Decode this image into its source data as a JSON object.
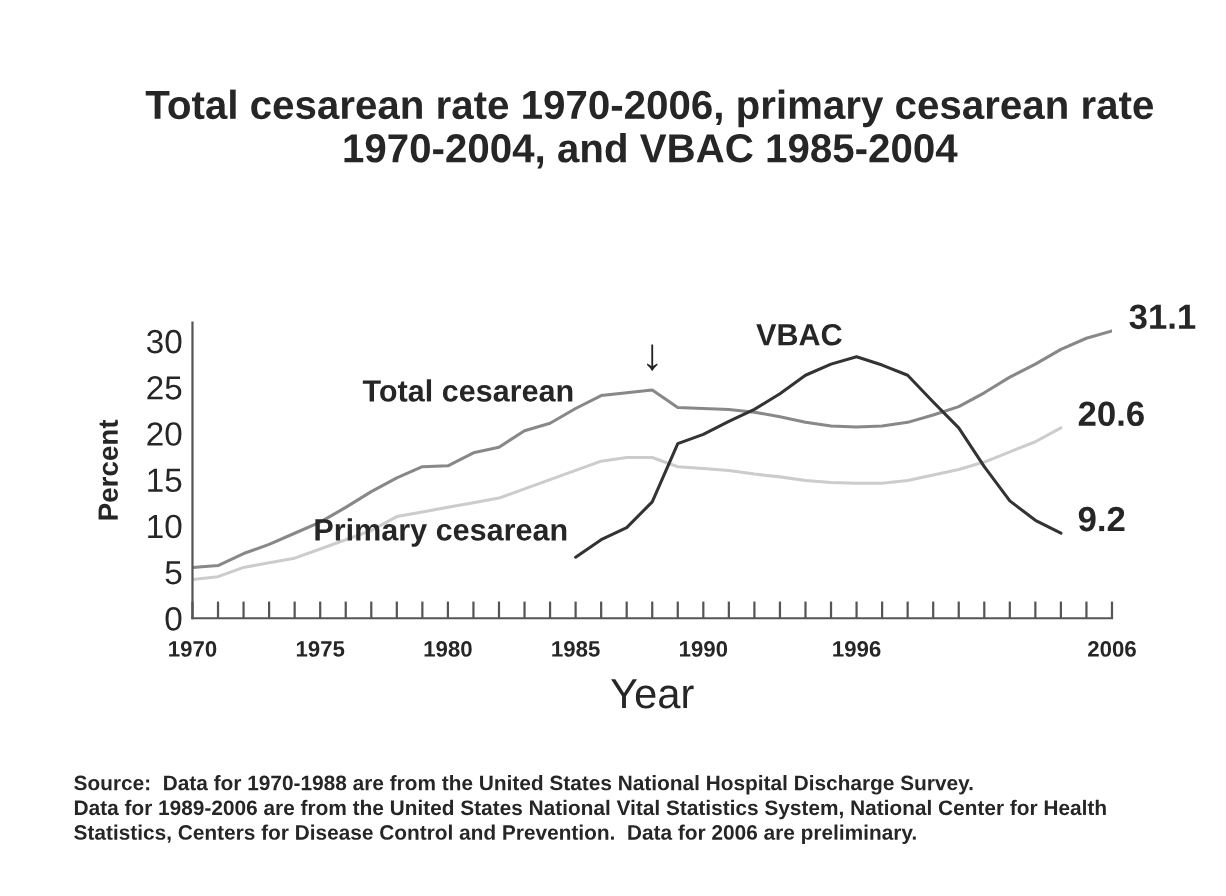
{
  "chart_data": {
    "type": "line",
    "title": "Total cesarean rate 1970-2006, primary cesarean rate\n1970-2004, and VBAC 1985-2004",
    "xlabel": "Year",
    "ylabel": "Percent",
    "x": [
      1970,
      1971,
      1972,
      1973,
      1974,
      1975,
      1976,
      1977,
      1978,
      1979,
      1980,
      1981,
      1982,
      1983,
      1984,
      1985,
      1986,
      1987,
      1988,
      1989,
      1990,
      1991,
      1992,
      1993,
      1994,
      1995,
      1996,
      1997,
      1998,
      1999,
      2000,
      2001,
      2002,
      2003,
      2004,
      2005,
      2006
    ],
    "series": [
      {
        "name": "Total cesarean",
        "color": "#888888",
        "values": [
          5.5,
          5.7,
          7.0,
          8.0,
          9.2,
          10.4,
          12.0,
          13.7,
          15.2,
          16.4,
          16.5,
          17.9,
          18.5,
          20.3,
          21.1,
          22.7,
          24.1,
          24.4,
          24.7,
          22.8,
          22.7,
          22.6,
          22.3,
          21.8,
          21.2,
          20.8,
          20.7,
          20.8,
          21.2,
          22.0,
          22.9,
          24.4,
          26.1,
          27.5,
          29.1,
          30.3,
          31.1
        ],
        "value_labels": [
          null,
          null,
          null,
          null,
          null,
          null,
          null,
          null,
          null,
          null,
          null,
          null,
          null,
          null,
          null,
          null,
          null,
          null,
          null,
          null,
          null,
          null,
          null,
          null,
          null,
          null,
          null,
          null,
          null,
          null,
          null,
          null,
          null,
          null,
          null,
          null,
          "31.1"
        ]
      },
      {
        "name": "Primary cesarean",
        "color": "#cccccc",
        "values": [
          4.2,
          4.5,
          5.5,
          6.0,
          6.5,
          7.5,
          8.5,
          9.5,
          11.0,
          11.5,
          12.0,
          12.5,
          13.0,
          14.0,
          15.0,
          16.0,
          17.0,
          17.4,
          17.4,
          16.4,
          16.2,
          16.0,
          15.6,
          15.3,
          14.9,
          14.7,
          14.6,
          14.6,
          14.9,
          15.5,
          16.1,
          16.9,
          18.0,
          19.1,
          20.6,
          null,
          null
        ],
        "value_labels": [
          null,
          null,
          null,
          null,
          null,
          null,
          null,
          null,
          null,
          null,
          null,
          null,
          null,
          null,
          null,
          null,
          null,
          null,
          null,
          null,
          null,
          null,
          null,
          null,
          null,
          null,
          null,
          null,
          null,
          null,
          null,
          null,
          null,
          null,
          "20.6",
          null,
          null
        ]
      },
      {
        "name": "VBAC",
        "color": "#333333",
        "values": [
          null,
          null,
          null,
          null,
          null,
          null,
          null,
          null,
          null,
          null,
          null,
          null,
          null,
          null,
          null,
          6.6,
          8.5,
          9.8,
          12.6,
          18.9,
          19.9,
          21.3,
          22.6,
          24.3,
          26.3,
          27.5,
          28.3,
          27.4,
          26.3,
          23.4,
          20.6,
          16.4,
          12.7,
          10.6,
          9.2,
          null,
          null
        ],
        "value_labels": [
          null,
          null,
          null,
          null,
          null,
          null,
          null,
          null,
          null,
          null,
          null,
          null,
          null,
          null,
          null,
          null,
          null,
          null,
          null,
          null,
          null,
          null,
          null,
          null,
          null,
          null,
          null,
          null,
          null,
          null,
          null,
          null,
          null,
          null,
          "9.2",
          null,
          null
        ]
      }
    ],
    "xlim": [
      1970,
      2006
    ],
    "ylim": [
      0,
      32
    ],
    "yticks": [
      0,
      5,
      10,
      15,
      20,
      25,
      30
    ],
    "xticks": [
      1970,
      {
        "value": 1971,
        "label": null
      },
      {
        "value": 1972,
        "label": null
      },
      {
        "value": 1973,
        "label": null
      },
      {
        "value": 1974,
        "label": null
      },
      1975,
      {
        "value": 1976,
        "label": null
      },
      {
        "value": 1977,
        "label": null
      },
      {
        "value": 1978,
        "label": null
      },
      {
        "value": 1979,
        "label": null
      },
      1980,
      {
        "value": 1981,
        "label": null
      },
      {
        "value": 1982,
        "label": null
      },
      {
        "value": 1983,
        "label": null
      },
      {
        "value": 1984,
        "label": null
      },
      1985,
      {
        "value": 1986,
        "label": null
      },
      {
        "value": 1987,
        "label": null
      },
      {
        "value": 1988,
        "label": null
      },
      {
        "value": 1989,
        "label": null
      },
      1990,
      {
        "value": 1991,
        "label": null
      },
      {
        "value": 1992,
        "label": null
      },
      {
        "value": 1993,
        "label": null
      },
      {
        "value": 1994,
        "label": null
      },
      {
        "value": 1995,
        "label": null
      },
      1996,
      {
        "value": 1997,
        "label": null
      },
      {
        "value": 1998,
        "label": null
      },
      {
        "value": 1999,
        "label": null
      },
      {
        "value": 2000,
        "label": null
      },
      {
        "value": 2001,
        "label": null
      },
      {
        "value": 2002,
        "label": null
      },
      {
        "value": 2003,
        "label": null
      },
      {
        "value": 2004,
        "label": null
      },
      {
        "value": 2005,
        "label": null
      },
      2006
    ],
    "annotations": [
      "↓",
      "Source:  Data for 1970-1988 are from the United States National Hospital Discharge Survey.\nData for 1989-2006 are from the United States National Vital Statistics System, National Center for Health\nStatistics, Centers for Disease Control and Prevention.  Data for 2006 are preliminary."
    ],
    "grid": false,
    "legend": false
  }
}
